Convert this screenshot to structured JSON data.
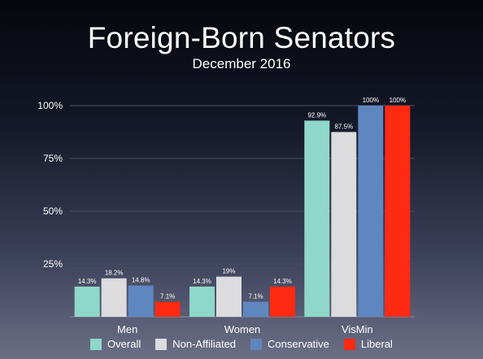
{
  "chart_data": {
    "type": "bar",
    "title": "Foreign-Born Senators",
    "subtitle": "December 2016",
    "categories": [
      "Men",
      "Women",
      "VisMin"
    ],
    "series": [
      {
        "name": "Overall",
        "color": "#8fd8c9",
        "values": [
          14.3,
          14.3,
          92.9
        ],
        "labels": [
          "14.3%",
          "14.3%",
          "92.9%"
        ]
      },
      {
        "name": "Non-Affiliated",
        "color": "#dcdcdf",
        "values": [
          18.2,
          19,
          87.5
        ],
        "labels": [
          "18.2%",
          "19%",
          "87.5%"
        ]
      },
      {
        "name": "Conservative",
        "color": "#5f87bf",
        "values": [
          14.8,
          7.1,
          100
        ],
        "labels": [
          "14.8%",
          "7.1%",
          "100%"
        ]
      },
      {
        "name": "Liberal",
        "color": "#ff2a12",
        "values": [
          7.1,
          14.3,
          100
        ],
        "labels": [
          "7.1%",
          "14.3%",
          "100%"
        ]
      }
    ],
    "ylim": [
      0,
      100
    ],
    "yticks": [
      25,
      50,
      75,
      100
    ],
    "ytick_labels": [
      "25%",
      "50%",
      "75%",
      "100%"
    ],
    "grid": true,
    "legend_position": "bottom"
  }
}
